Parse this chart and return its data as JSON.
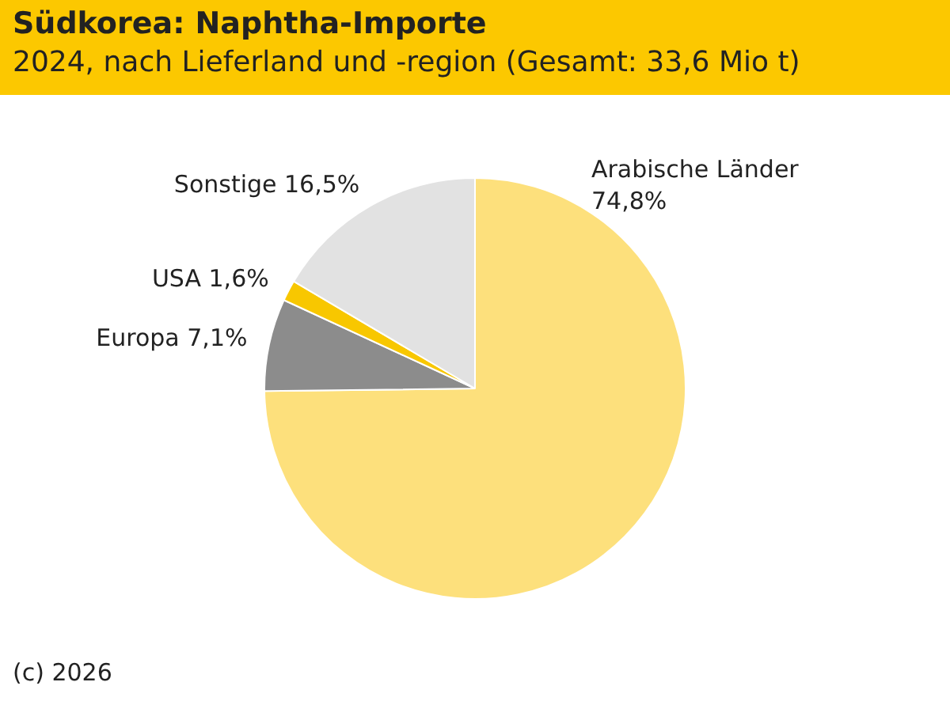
{
  "chart_data": {
    "type": "pie",
    "title": "Südkorea: Naphtha-Importe",
    "subtitle": "2024, nach Lieferland und -region (Gesamt: 33,6 Mio t)",
    "categories": [
      "Arabische Länder",
      "Europa",
      "USA",
      "Sonstige"
    ],
    "values": [
      74.8,
      7.1,
      1.6,
      16.5
    ],
    "value_labels": [
      "74,8%",
      "7,1%",
      "1,6%",
      "16,5%"
    ],
    "colors": [
      "#fde07c",
      "#8c8c8c",
      "#f8c700",
      "#e2e2e2"
    ],
    "legend": false,
    "annotations": [
      "(c) 2026"
    ]
  }
}
